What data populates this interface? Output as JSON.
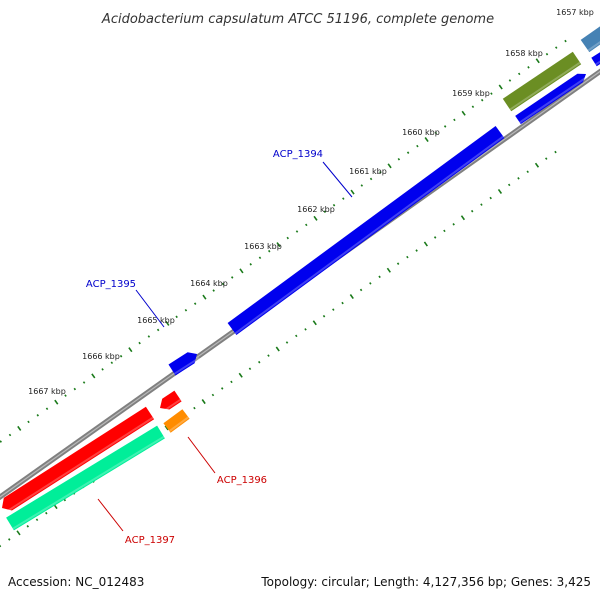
{
  "title": "Acidobacterium capsulatum ATCC 51196, complete genome",
  "footer": {
    "accession": "Accession: NC_012483",
    "summary": "Topology: circular; Length: 4,127,356 bp; Genes: 3,425"
  },
  "ticks": [
    {
      "label": "1657 kbp",
      "pos_kbp": 1657
    },
    {
      "label": "1658 kbp",
      "pos_kbp": 1658
    },
    {
      "label": "1659 kbp",
      "pos_kbp": 1659
    },
    {
      "label": "1660 kbp",
      "pos_kbp": 1660
    },
    {
      "label": "1661 kbp",
      "pos_kbp": 1661
    },
    {
      "label": "1662 kbp",
      "pos_kbp": 1662
    },
    {
      "label": "1663 kbp",
      "pos_kbp": 1663
    },
    {
      "label": "1664 kbp",
      "pos_kbp": 1664
    },
    {
      "label": "1665 kbp",
      "pos_kbp": 1665
    },
    {
      "label": "1666 kbp",
      "pos_kbp": 1666
    },
    {
      "label": "1667 kbp",
      "pos_kbp": 1667
    }
  ],
  "gene_labels": [
    {
      "name": "ACP_1394",
      "color": "#0000cc"
    },
    {
      "name": "ACP_1395",
      "color": "#0000cc"
    },
    {
      "name": "ACP_1396",
      "color": "#cc0000"
    },
    {
      "name": "ACP_1397",
      "color": "#cc0000"
    }
  ],
  "colors": {
    "backbone": "#808080",
    "tick": "#1a7a1a",
    "blue_gene": "#0000ee",
    "olive_gene": "#6b8e23",
    "steel_gene": "#4682b4",
    "red_gene": "#ff0000",
    "orange_gene": "#ff8c00",
    "teal_gene": "#00ee99"
  }
}
